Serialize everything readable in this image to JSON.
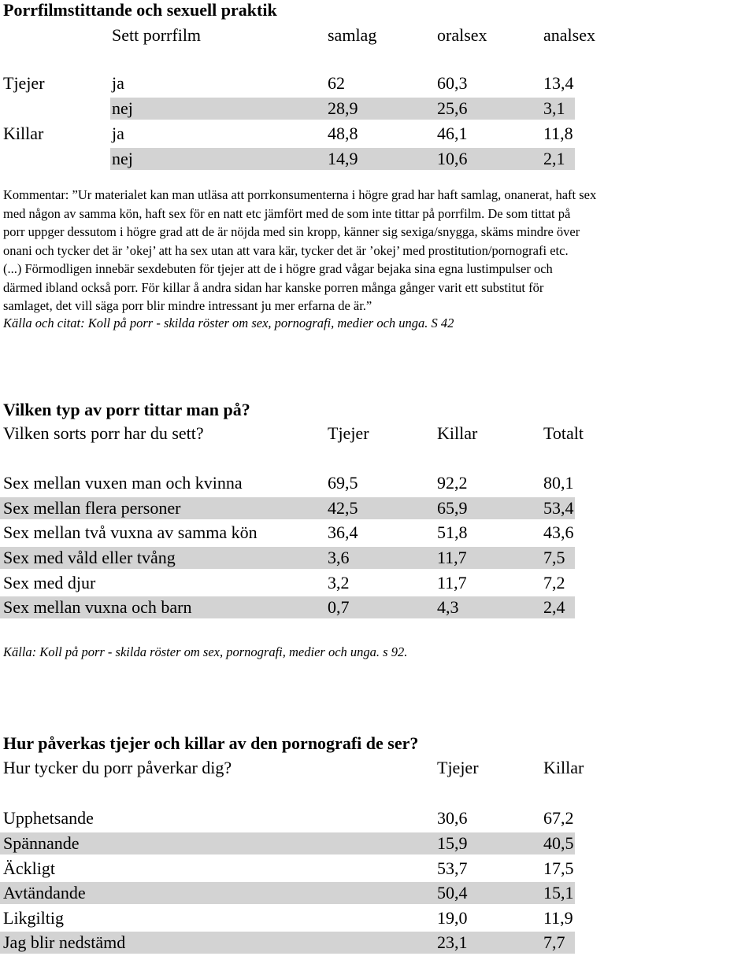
{
  "section1": {
    "title": "Porrfilmstittande och sexuell praktik",
    "headers": [
      "Sett porrfilm",
      "samlag",
      "oralsex",
      "analsex"
    ],
    "rows": [
      {
        "group": "Tjejer",
        "answer": "ja",
        "samlag": "62",
        "oralsex": "60,3",
        "analsex": "13,4"
      },
      {
        "group": "",
        "answer": "nej",
        "samlag": "28,9",
        "oralsex": "25,6",
        "analsex": "3,1"
      },
      {
        "group": "Killar",
        "answer": "ja",
        "samlag": "48,8",
        "oralsex": "46,1",
        "analsex": "11,8"
      },
      {
        "group": "",
        "answer": "nej",
        "samlag": "14,9",
        "oralsex": "10,6",
        "analsex": "2,1"
      }
    ],
    "comment_lines": [
      "Kommentar: ”Ur materialet kan man utläsa att porrkonsumenterna i högre grad har haft samlag, onanerat, haft sex",
      "med någon av samma kön, haft sex för en natt etc jämfört med de som inte tittar på porrfilm. De som tittat på",
      "porr uppger dessutom i högre grad att de är nöjda med sin kropp, känner sig sexiga/snygga, skäms mindre över",
      "onani och tycker det är ’okej’ att ha sex utan att vara kär, tycker det är ’okej’ med prostitution/pornografi etc.",
      "(...) Förmodligen innebär sexdebuten för tjejer att de i högre grad vågar bejaka sina egna lustimpulser och",
      "därmed ibland också porr. För killar å andra sidan har kanske porren många gånger varit ett substitut för",
      "samlaget, det vill säga porr blir mindre intressant ju mer erfarna de är.”"
    ],
    "source": "Källa och citat: Koll på porr - skilda röster om sex, pornografi, medier och unga. S 42"
  },
  "section2": {
    "title": "Vilken typ av porr tittar man på?",
    "question": "Vilken sorts porr har du sett?",
    "headers": [
      "Tjejer",
      "Killar",
      "Totalt"
    ],
    "rows": [
      {
        "label": "Sex mellan vuxen man och kvinna",
        "tjejer": "69,5",
        "killar": "92,2",
        "totalt": "80,1"
      },
      {
        "label": "Sex mellan flera personer",
        "tjejer": "42,5",
        "killar": "65,9",
        "totalt": "53,4"
      },
      {
        "label": "Sex mellan två vuxna av samma kön",
        "tjejer": "36,4",
        "killar": "51,8",
        "totalt": "43,6"
      },
      {
        "label": "Sex med våld eller tvång",
        "tjejer": "3,6",
        "killar": "11,7",
        "totalt": "7,5"
      },
      {
        "label": "Sex med djur",
        "tjejer": "3,2",
        "killar": "11,7",
        "totalt": "7,2"
      },
      {
        "label": "Sex mellan vuxna och barn",
        "tjejer": "0,7",
        "killar": "4,3",
        "totalt": "2,4"
      }
    ],
    "source": "Källa: Koll på porr - skilda röster om sex, pornografi, medier och unga. s 92."
  },
  "section3": {
    "title": "Hur påverkas tjejer och killar av den pornografi de ser?",
    "question": "Hur tycker du porr påverkar dig?",
    "headers": [
      "Tjejer",
      "Killar"
    ],
    "rows": [
      {
        "label": "Upphetsande",
        "tjejer": "30,6",
        "killar": "67,2"
      },
      {
        "label": "Spännande",
        "tjejer": "15,9",
        "killar": "40,5"
      },
      {
        "label": "Äckligt",
        "tjejer": "53,7",
        "killar": "17,5"
      },
      {
        "label": "Avtändande",
        "tjejer": "50,4",
        "killar": "15,1"
      },
      {
        "label": "Likgiltig",
        "tjejer": "19,0",
        "killar": "11,9"
      },
      {
        "label": "Jag blir nedstämd",
        "tjejer": "23,1",
        "killar": "7,7"
      }
    ]
  }
}
